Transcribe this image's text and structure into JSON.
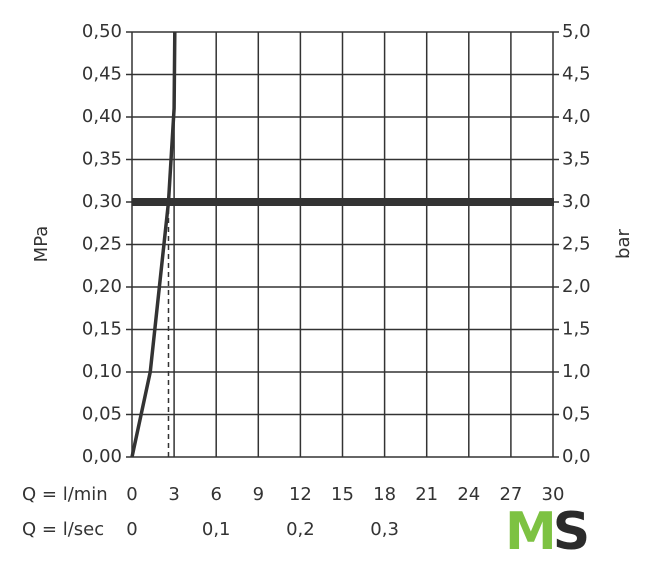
{
  "chart_data": {
    "type": "line",
    "ylabel": "MPa",
    "y2label": "bar",
    "xlabel": "Q = l/min",
    "x2label": "Q = l/sec",
    "xlim": [
      0,
      30
    ],
    "xticks": [
      0,
      3,
      6,
      9,
      12,
      15,
      18,
      21,
      24,
      27,
      30
    ],
    "x2lim": [
      0,
      0.5
    ],
    "x2ticks": [
      0,
      {
        "value": 0.1,
        "label": "0,1"
      },
      {
        "value": 0.2,
        "label": "0,2"
      },
      {
        "value": 0.3,
        "label": "0,3"
      }
    ],
    "ylim": [
      0,
      0.5
    ],
    "yticks": [
      {
        "value": 0,
        "label": "0,00"
      },
      {
        "value": 0.05,
        "label": "0,05"
      },
      {
        "value": 0.1,
        "label": "0,10"
      },
      {
        "value": 0.15,
        "label": "0,15"
      },
      {
        "value": 0.2,
        "label": "0,20"
      },
      {
        "value": 0.25,
        "label": "0,25"
      },
      {
        "value": 0.3,
        "label": "0,30"
      },
      {
        "value": 0.35,
        "label": "0,35"
      },
      {
        "value": 0.4,
        "label": "0,40"
      },
      {
        "value": 0.45,
        "label": "0,45"
      },
      {
        "value": 0.5,
        "label": "0,50"
      }
    ],
    "y2lim": [
      0,
      5
    ],
    "y2ticks": [
      {
        "value": 0,
        "label": "0,0"
      },
      {
        "value": 0.5,
        "label": "0,5"
      },
      {
        "value": 1,
        "label": "1,0"
      },
      {
        "value": 1.5,
        "label": "1,5"
      },
      {
        "value": 2,
        "label": "2,0"
      },
      {
        "value": 2.5,
        "label": "2,5"
      },
      {
        "value": 3,
        "label": "3,0"
      },
      {
        "value": 3.5,
        "label": "3,5"
      },
      {
        "value": 4,
        "label": "4,0"
      },
      {
        "value": 4.5,
        "label": "4,5"
      },
      {
        "value": 5,
        "label": "5,0"
      }
    ],
    "grid": true,
    "series": [
      {
        "color": "#333333",
        "x": [
          0,
          1.3,
          2.6,
          3.0,
          3.05
        ],
        "values": [
          0,
          0.1,
          0.3,
          0.41,
          0.5
        ]
      }
    ],
    "reference_lines": [
      {
        "y": 0.3,
        "color": "#333333"
      },
      {
        "x": 2.6,
        "color": "#333333",
        "dashed": true
      }
    ]
  },
  "logo": {
    "letters": [
      "M",
      "S"
    ],
    "colors": [
      "#7dc242",
      "#2b2b2b"
    ]
  }
}
